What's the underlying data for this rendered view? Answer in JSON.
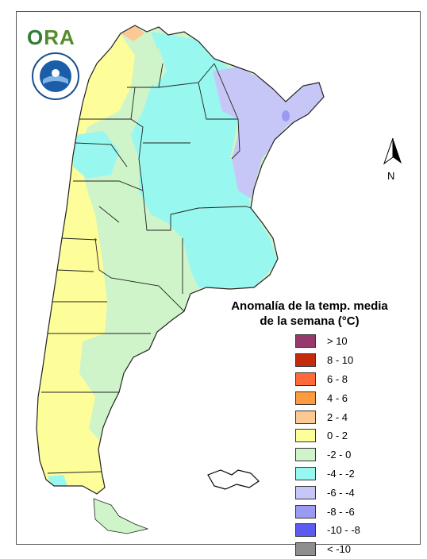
{
  "logo": {
    "ora_o": "O",
    "ora_ra": "RA"
  },
  "legend": {
    "title_line1": "Anomalía de la temp. media",
    "title_line2": "de la semana (°C)",
    "items": [
      {
        "label": "> 10",
        "color": "#953a6b"
      },
      {
        "label": "8 - 10",
        "color": "#c42b0c"
      },
      {
        "label": "6 - 8",
        "color": "#ff6a3a"
      },
      {
        "label": "4 - 6",
        "color": "#fd9b3f"
      },
      {
        "label": "2 - 4",
        "color": "#fcc894"
      },
      {
        "label": "0 - 2",
        "color": "#fdfd9a"
      },
      {
        "label": "-2 - 0",
        "color": "#cff4c9"
      },
      {
        "label": "-4 - -2",
        "color": "#98f7ef"
      },
      {
        "label": "-6 - -4",
        "color": "#c7c7f7"
      },
      {
        "label": "-8 - -6",
        "color": "#9a9af3"
      },
      {
        "label": "-10 - -8",
        "color": "#5b5bf0"
      },
      {
        "label": "< -10",
        "color": "#8e8e8e"
      }
    ]
  },
  "north_label": "N"
}
